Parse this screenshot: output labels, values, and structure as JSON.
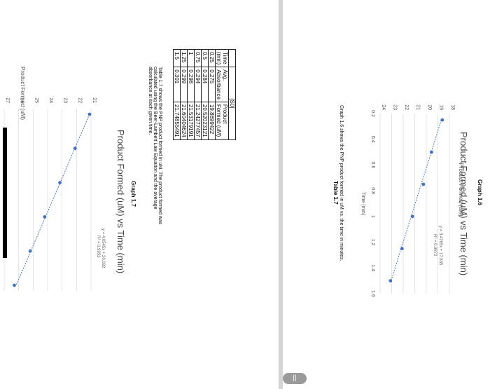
{
  "graph_1_6": {
    "heading": "Graph 1.6",
    "title": "Product Formed (uM) vs Time (min)",
    "y_axis_label": "Product Formed (uM)",
    "x_axis_label": "Time (min)",
    "x_ticks": [
      "0.2",
      "0.4",
      "0.6",
      "0.8",
      "1",
      "1.2",
      "1.4",
      "1.6"
    ],
    "y_ticks": [
      "18",
      "19",
      "20",
      "21",
      "22",
      "23",
      "24"
    ],
    "equation": "y = 3.4765x + 17.835",
    "r_squared": "R² = 0.9872",
    "caption": "Graph 1.6 shows the PNP product formed in uM vs. the time in minutes.",
    "chart_data": {
      "type": "scatter",
      "x": [
        0.25,
        0.5,
        0.75,
        1,
        1.25,
        1.5
      ],
      "y": [
        18.62,
        19.55,
        20.25,
        21.2,
        22.1,
        23.1
      ],
      "xlim": [
        0.2,
        1.6
      ],
      "ylim": [
        18,
        24
      ],
      "trendline": {
        "slope": 3.4765,
        "intercept": 17.835
      }
    }
  },
  "table_1_7": {
    "heading": "Table 1.7",
    "super_header": "[S0]",
    "headers": [
      "Time (min)",
      "Avg. Absorbance",
      "Product Formed (uM)"
    ],
    "rows": [
      [
        "0.25",
        "0.275",
        "19.8699422"
      ],
      [
        "0.5",
        "0.284",
        "20.52023121"
      ],
      [
        "0.75",
        "0.294",
        "21.24277457"
      ],
      [
        "1",
        "0.298",
        "21.53179191"
      ],
      [
        "1.25",
        "0.299",
        "21.60404624"
      ],
      [
        "1.5",
        "0.301",
        "21.74855491"
      ]
    ],
    "caption": "Table 1.7 shows the PNP product formed in uM. The product formed was calculated using the Beer-Lambert Law Equation and the average absorbance at each given time."
  },
  "graph_1_7": {
    "heading": "Graph 1.7",
    "title": "Product Formed (uM) vs Time (min)",
    "y_axis_label": "Product Formed (uM)",
    "y_ticks": [
      "21",
      "22",
      "23",
      "24",
      "25",
      "26",
      "27"
    ],
    "equation": "y = 4.0545x + 20.092",
    "r_squared": "R² = 0.9953",
    "chart_data": {
      "type": "scatter",
      "x": [
        0.25,
        0.5,
        0.75,
        1,
        1.25,
        1.5
      ],
      "y": [
        21.1,
        22.1,
        23.15,
        24.2,
        25.2,
        26.3
      ],
      "ylim": [
        21,
        27
      ],
      "trendline": {
        "slope": 4.0545,
        "intercept": 20.092
      }
    }
  },
  "pager": {
    "label": "||"
  },
  "colors": {
    "marker": "#4472c4",
    "trendline": "#4472c4",
    "grid": "#d9d9d9",
    "redaction": "#000000"
  }
}
